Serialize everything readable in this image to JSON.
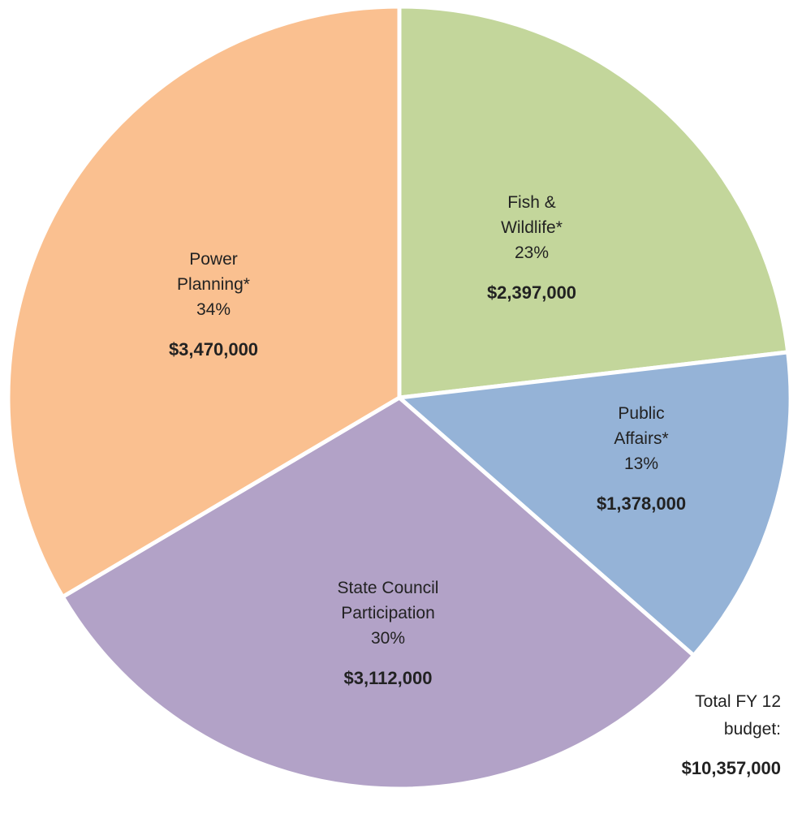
{
  "chart_data": {
    "type": "pie",
    "categories": [
      "Fish & Wildlife*",
      "Public Affairs*",
      "State Council Participation",
      "Power Planning*"
    ],
    "values": [
      2397000,
      1378000,
      3112000,
      3470000
    ],
    "value_labels": [
      "$2,397,000",
      "$1,378,000",
      "$3,112,000",
      "$3,470,000"
    ],
    "percentages": [
      23,
      13,
      30,
      34
    ],
    "percentage_labels": [
      "23%",
      "13%",
      "30%",
      "34%"
    ],
    "colors": [
      "#c3d69b",
      "#95b3d7",
      "#b2a2c7",
      "#fac090"
    ],
    "annotation": {
      "text": "Total FY 12 budget:",
      "value": 10357000,
      "label": "$10,357,000"
    }
  }
}
